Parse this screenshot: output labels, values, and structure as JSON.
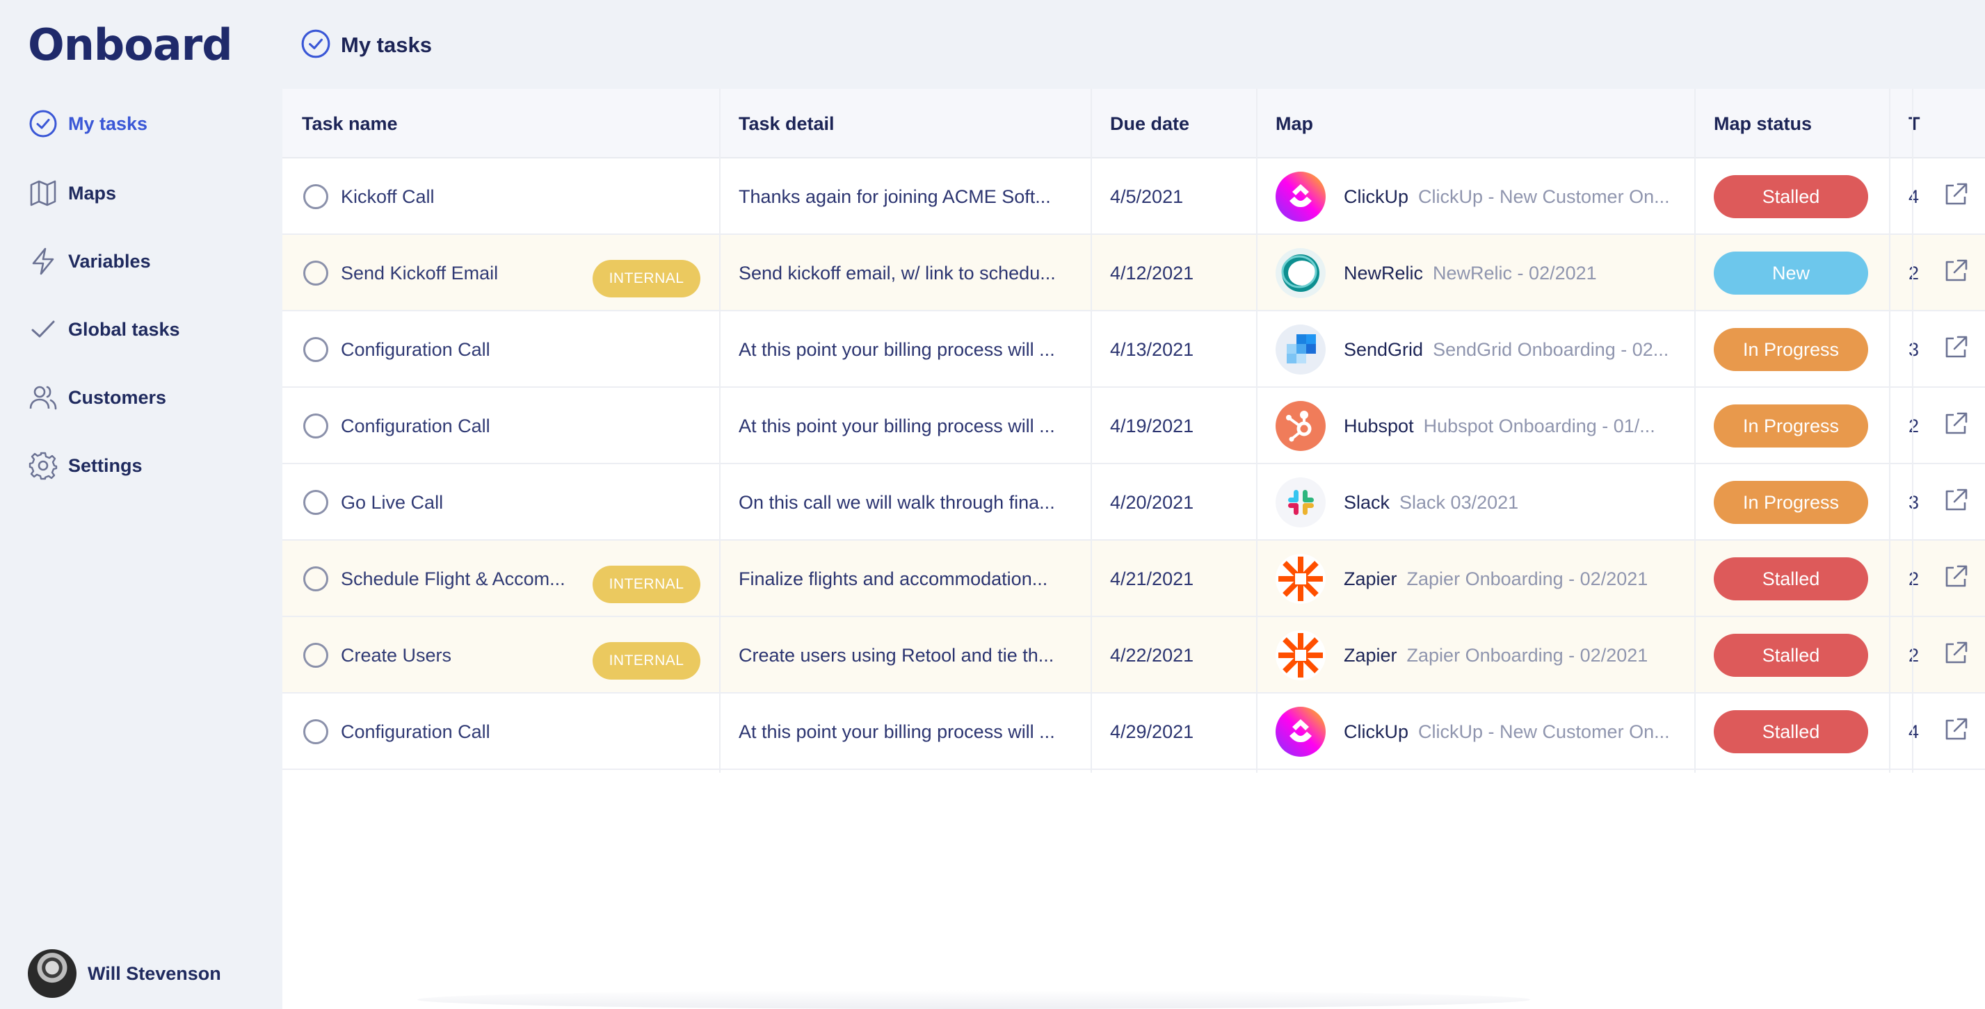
{
  "app": {
    "logo": "Onboard"
  },
  "sidebar": {
    "items": [
      {
        "label": "My tasks",
        "icon": "check-circle-icon",
        "active": true
      },
      {
        "label": "Maps",
        "icon": "map-icon"
      },
      {
        "label": "Variables",
        "icon": "lightning-icon"
      },
      {
        "label": "Global tasks",
        "icon": "checkmark-icon"
      },
      {
        "label": "Customers",
        "icon": "users-icon"
      },
      {
        "label": "Settings",
        "icon": "gear-icon"
      }
    ],
    "user": {
      "name": "Will Stevenson"
    }
  },
  "header": {
    "title": "My tasks"
  },
  "table": {
    "columns": [
      "Task name",
      "Task detail",
      "Due date",
      "Map",
      "Map status",
      "T"
    ],
    "rows": [
      {
        "task": "Kickoff Call",
        "internal": false,
        "detail": "Thanks again for joining ACME Soft...",
        "due": "4/5/2021",
        "map_logo": "clickup",
        "map_name": "ClickUp",
        "map_sub": "ClickUp - New Customer On...",
        "status": "Stalled",
        "col6": "4"
      },
      {
        "task": "Send Kickoff Email",
        "internal": true,
        "badge": "INTERNAL",
        "detail": "Send kickoff email, w/ link to schedu...",
        "due": "4/12/2021",
        "map_logo": "newrelic",
        "map_name": "NewRelic",
        "map_sub": "NewRelic - 02/2021",
        "status": "New",
        "col6": "2"
      },
      {
        "task": "Configuration Call",
        "internal": false,
        "detail": "At this point your billing process will ...",
        "due": "4/13/2021",
        "map_logo": "sendgrid",
        "map_name": "SendGrid",
        "map_sub": "SendGrid Onboarding - 02...",
        "status": "In Progress",
        "col6": "3"
      },
      {
        "task": "Configuration Call",
        "internal": false,
        "detail": "At this point your billing process will ...",
        "due": "4/19/2021",
        "map_logo": "hubspot",
        "map_name": "Hubspot",
        "map_sub": "Hubspot Onboarding - 01/...",
        "status": "In Progress",
        "col6": "2"
      },
      {
        "task": "Go Live Call",
        "internal": false,
        "detail": "On this call we will walk through fina...",
        "due": "4/20/2021",
        "map_logo": "slack",
        "map_name": "Slack",
        "map_sub": "Slack 03/2021",
        "status": "In Progress",
        "col6": "3"
      },
      {
        "task": "Schedule Flight & Accom...",
        "internal": true,
        "badge": "INTERNAL",
        "detail": "Finalize flights and accommodation...",
        "due": "4/21/2021",
        "map_logo": "zapier",
        "map_name": "Zapier",
        "map_sub": "Zapier Onboarding - 02/2021",
        "status": "Stalled",
        "col6": "2"
      },
      {
        "task": "Create Users",
        "internal": true,
        "badge": "INTERNAL",
        "detail": "Create users using Retool and tie th...",
        "due": "4/22/2021",
        "map_logo": "zapier",
        "map_name": "Zapier",
        "map_sub": "Zapier Onboarding - 02/2021",
        "status": "Stalled",
        "col6": "2"
      },
      {
        "task": "Configuration Call",
        "internal": false,
        "detail": "At this point your billing process will ...",
        "due": "4/29/2021",
        "map_logo": "clickup",
        "map_name": "ClickUp",
        "map_sub": "ClickUp - New Customer On...",
        "status": "Stalled",
        "col6": "4"
      }
    ]
  },
  "colors": {
    "Stalled": "#dd5a5a",
    "New": "#6dc7ec",
    "In Progress": "#e8994c",
    "accent": "#3a57d6",
    "internal_badge": "#ebc95f"
  }
}
